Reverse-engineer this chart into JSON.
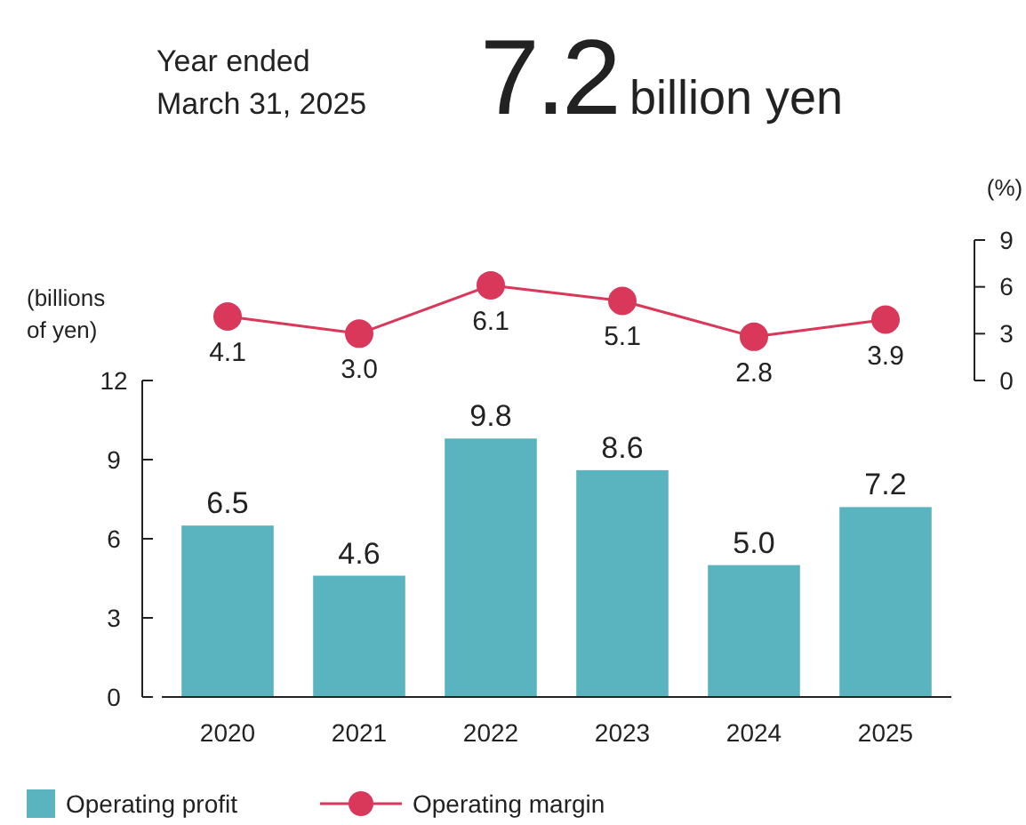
{
  "chart_data": [
    {
      "type": "line",
      "title": "Year ended March 31, 2025",
      "subtitle": "7.2",
      "annotations": [
        "billion yen"
      ],
      "ylabel": "(%)",
      "categories": [
        null,
        null,
        null,
        null,
        null,
        null
      ],
      "series": [
        {
          "name": "Operating margin",
          "color": "#d9385a",
          "values": [
            4.1,
            3.0,
            6.1,
            5.1,
            2.8,
            3.9
          ],
          "value_labels": [
            "4.1",
            "3.0",
            "6.1",
            "5.1",
            "2.8",
            "3.9"
          ]
        }
      ],
      "ylim": [
        0,
        9
      ],
      "yticks": [
        0,
        3,
        6,
        9
      ],
      "tick_labels": "y",
      "marker": "circle",
      "legend": "bottom"
    },
    {
      "type": "bar",
      "ylabel": "(billions of yen)",
      "categories": [
        "2020",
        "2021",
        "2022",
        "2023",
        "2024",
        "2025"
      ],
      "series": [
        {
          "name": "Operating profit",
          "color": "#5ab4c0",
          "values": [
            6.5,
            4.6,
            9.8,
            8.6,
            5.0,
            7.2
          ],
          "value_labels": [
            "6.5",
            "4.6",
            "9.8",
            "8.6",
            "5.0",
            "7.2"
          ]
        }
      ],
      "ylim": [
        0,
        12
      ],
      "yticks": [
        0,
        3,
        6,
        9,
        12
      ],
      "legend": "bottom"
    }
  ]
}
